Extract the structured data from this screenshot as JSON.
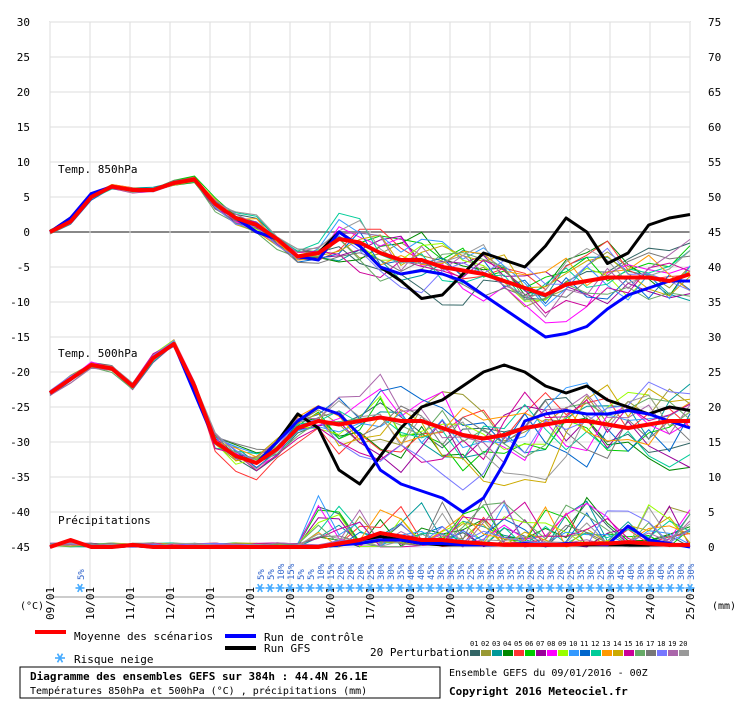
{
  "chart_data": {
    "type": "line",
    "left_axis": {
      "unit": "(°C)",
      "min": -45,
      "max": 30,
      "ticks": [
        30,
        25,
        20,
        15,
        10,
        5,
        0,
        -5,
        -10,
        -15,
        -20,
        -25,
        -30,
        -35,
        -40,
        -45
      ]
    },
    "right_axis": {
      "unit": "(mm)",
      "min": 0,
      "max": 75,
      "ticks": [
        75,
        70,
        65,
        60,
        55,
        50,
        45,
        40,
        35,
        30,
        25,
        20,
        15,
        10,
        5,
        0
      ]
    },
    "x_axis": {
      "range_hours": [
        0,
        384
      ],
      "date_labels": [
        "09/01",
        "10/01",
        "11/01",
        "12/01",
        "13/01",
        "14/01",
        "15/01",
        "16/01",
        "17/01",
        "18/01",
        "19/01",
        "20/01",
        "21/01",
        "22/01",
        "23/01",
        "24/01",
        "25/01"
      ]
    },
    "panel_labels": {
      "t850": "Temp. 850hPa",
      "t500": "Temp. 500hPa",
      "precip": "Précipitations"
    },
    "snow_risk": {
      "hours": [
        18,
        126,
        132,
        138,
        144,
        150,
        156,
        162,
        168,
        174,
        180,
        186,
        192,
        198,
        204,
        210,
        216,
        222,
        228,
        234,
        240,
        246,
        252,
        258,
        264,
        270,
        276,
        282,
        288,
        294,
        300,
        306,
        312,
        318,
        324,
        330,
        336,
        342,
        348,
        354,
        360,
        366,
        372,
        378,
        384
      ],
      "labels": [
        "5%",
        "5%",
        "5%",
        "10%",
        "15%",
        "5%",
        "5%",
        "10%",
        "15%",
        "20%",
        "20%",
        "20%",
        "25%",
        "30%",
        "30%",
        "35%",
        "40%",
        "40%",
        "45%",
        "30%",
        "30%",
        "35%",
        "25%",
        "30%",
        "35%",
        "30%",
        "35%",
        "35%",
        "20%",
        "20%",
        "30%",
        "20%",
        "25%",
        "35%",
        "30%",
        "25%",
        "30%",
        "45%",
        "40%",
        "30%",
        "30%",
        "40%",
        "35%",
        "30%",
        "30%"
      ]
    },
    "series": [
      {
        "name": "Moyenne des scénarios",
        "color": "#ff0000",
        "t850": [
          0,
          1.5,
          5,
          6.5,
          6,
          6,
          7,
          7.5,
          4,
          2,
          1,
          -1,
          -3.5,
          -3,
          -1,
          -1.5,
          -3,
          -4,
          -4,
          -5,
          -5.5,
          -6,
          -7,
          -8,
          -9,
          -7.5,
          -7,
          -6.5,
          -6.5,
          -6.5,
          -7,
          -6
        ],
        "t500": [
          -23,
          -21,
          -19,
          -19.5,
          -22,
          -18,
          -16,
          -22,
          -30,
          -32,
          -33,
          -31,
          -28,
          -27,
          -27.5,
          -27,
          -26.5,
          -27,
          -27,
          -28,
          -29,
          -29.5,
          -29,
          -28,
          -27.5,
          -27,
          -27,
          -27.5,
          -28,
          -27.5,
          -27,
          -27
        ],
        "precip": [
          0,
          1,
          0,
          0,
          0.3,
          0,
          0,
          0,
          0,
          0,
          0,
          0,
          0,
          0,
          0.5,
          1,
          2,
          1.5,
          1,
          1,
          0.7,
          0.5,
          0.3,
          0.3,
          0.3,
          0.3,
          0.5,
          0.5,
          0.7,
          0.5,
          0.3,
          0.3
        ]
      },
      {
        "name": "Run de contrôle",
        "color": "#0000ff",
        "t850": [
          0,
          2,
          5.5,
          6.5,
          6,
          6,
          7,
          7.5,
          4,
          2,
          0,
          -1,
          -3.5,
          -4,
          0,
          -2,
          -5,
          -6,
          -5.5,
          -6,
          -7,
          -9,
          -11,
          -13,
          -15,
          -14.5,
          -13.5,
          -11,
          -9,
          -8,
          -7,
          -7
        ],
        "t500": [
          -23,
          -21,
          -19,
          -19.5,
          -22,
          -18,
          -16,
          -23,
          -30,
          -32,
          -33,
          -30,
          -27,
          -25,
          -26,
          -29,
          -34,
          -36,
          -37,
          -38,
          -40,
          -38,
          -33,
          -27,
          -26,
          -25.5,
          -26,
          -26,
          -25.5,
          -26,
          -27,
          -28
        ],
        "precip": [
          0,
          1,
          0,
          0,
          0.2,
          0,
          0,
          0,
          0,
          0,
          0,
          0,
          0,
          0,
          0.3,
          0.5,
          1,
          1,
          0.5,
          0.5,
          0.3,
          0.3,
          0.3,
          0.5,
          0.2,
          0.5,
          0.5,
          0.3,
          3,
          1,
          0.5,
          0
        ]
      },
      {
        "name": "Run GFS",
        "color": "#000000",
        "t850": [
          0,
          2,
          5,
          6.5,
          6,
          6,
          7,
          7.5,
          4,
          2,
          0,
          -1,
          -3.5,
          -3,
          0,
          -2,
          -5,
          -7,
          -9.5,
          -9,
          -6,
          -3,
          -4,
          -5,
          -2,
          2,
          0,
          -4.5,
          -3,
          1,
          2,
          2.5
        ],
        "t500": [
          -23,
          -21,
          -19,
          -19.5,
          -22,
          -18,
          -16,
          -22,
          -30,
          -32,
          -33,
          -30,
          -26,
          -28,
          -34,
          -36,
          -32,
          -28,
          -25,
          -24,
          -22,
          -20,
          -19,
          -20,
          -22,
          -23,
          -22,
          -24,
          -25,
          -26,
          -25,
          -25.5
        ],
        "precip": [
          0,
          1,
          0,
          0,
          0.2,
          0,
          0,
          0,
          0,
          0,
          0,
          0,
          0,
          0,
          0.3,
          1,
          1.5,
          1,
          0.5,
          0.3,
          0.3,
          0.3,
          0.3,
          0.3,
          0.3,
          0.3,
          0.3,
          0.3,
          0.3,
          0.3,
          0.3,
          0.3
        ]
      }
    ],
    "perturbations": {
      "label": "20 Perturbations",
      "ids": [
        "01",
        "02",
        "03",
        "04",
        "05",
        "06",
        "07",
        "08",
        "09",
        "10",
        "11",
        "12",
        "13",
        "14",
        "15",
        "16",
        "17",
        "18",
        "19",
        "20"
      ],
      "colors": [
        "#336666",
        "#999933",
        "#009999",
        "#008800",
        "#ff3333",
        "#00cc00",
        "#990099",
        "#ff00ff",
        "#99ff00",
        "#3399ff",
        "#0066cc",
        "#00cc99",
        "#ff9900",
        "#ccaa00",
        "#cc0099",
        "#66aa66",
        "#777777",
        "#7777ff",
        "#aa66aa",
        "#999999"
      ]
    }
  },
  "legend": {
    "mean": "Moyenne des scénarios",
    "control": "Run de contrôle",
    "gfs": "Run GFS",
    "snow": "Risque neige"
  },
  "footer": {
    "title": "Diagramme des ensembles GEFS sur 384h : 44.4N 26.1E",
    "subtitle": "Températures 850hPa et 500hPa (°C) , précipitations (mm)",
    "ensemble": "Ensemble GEFS du 09/01/2016 - 00Z",
    "copyright": "Copyright 2016 Meteociel.fr"
  }
}
